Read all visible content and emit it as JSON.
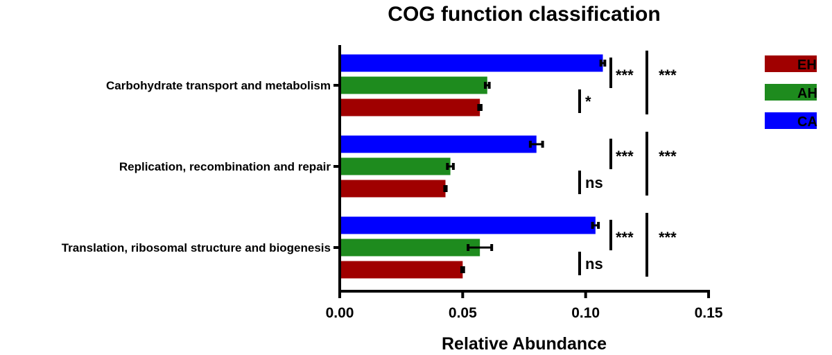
{
  "chart_data": {
    "type": "bar",
    "orientation": "horizontal",
    "title": "COG function classification",
    "xlabel": "Relative Abundance",
    "ylabel": "",
    "xlim": [
      0,
      0.15
    ],
    "x_ticks": [
      "0.00",
      "0.05",
      "0.10",
      "0.15"
    ],
    "categories": [
      "Carbohydrate transport and metabolism",
      "Replication, recombination and repair",
      "Translation, ribosomal structure and biogenesis"
    ],
    "series": [
      {
        "name": "CA",
        "color": "#0000ff",
        "values": [
          0.107,
          0.08,
          0.104
        ],
        "errors": [
          0.0008,
          0.0025,
          0.0012
        ]
      },
      {
        "name": "AH",
        "color": "#1e8b1e",
        "values": [
          0.06,
          0.045,
          0.057
        ],
        "errors": [
          0.0008,
          0.0012,
          0.0048
        ]
      },
      {
        "name": "EH",
        "color": "#a00000",
        "values": [
          0.057,
          0.043,
          0.05
        ],
        "errors": [
          0.0005,
          0.0003,
          0.0004
        ]
      }
    ],
    "legend": {
      "placement": "right",
      "entries": [
        "EH",
        "AH",
        "CA"
      ]
    },
    "significance": [
      {
        "short": "*",
        "mid": "***",
        "long": "***"
      },
      {
        "short": "ns",
        "mid": "***",
        "long": "***"
      },
      {
        "short": "ns",
        "mid": "***",
        "long": "***"
      }
    ],
    "grid": false
  }
}
